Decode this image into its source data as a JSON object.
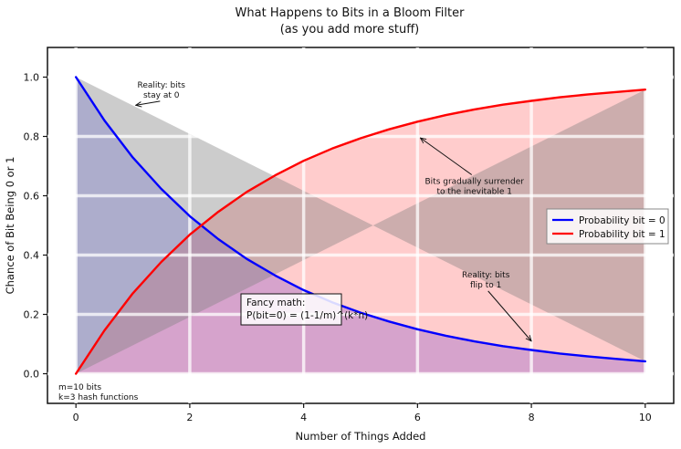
{
  "chart_data": {
    "type": "line",
    "title": "What Happens to Bits in a Bloom Filter",
    "subtitle": "(as you add more stuff)",
    "xlabel": "Number of Things Added",
    "ylabel": "Chance of Bit Being 0 or 1",
    "xlim": [
      -0.5,
      10.5
    ],
    "ylim": [
      -0.1,
      1.1
    ],
    "x_ticks": [
      0,
      2,
      4,
      6,
      8,
      10
    ],
    "x_tick_labels": [
      "0",
      "2",
      "4",
      "6",
      "8",
      "10"
    ],
    "y_ticks": [
      0.0,
      0.2,
      0.4,
      0.6,
      0.8,
      1.0
    ],
    "y_tick_labels": [
      "0.0",
      "0.2",
      "0.4",
      "0.6",
      "0.8",
      "1.0"
    ],
    "grid": true,
    "legend_position": "center-right",
    "x": [
      0,
      0.5,
      1,
      1.5,
      2,
      2.5,
      3,
      3.5,
      4,
      4.5,
      5,
      5.5,
      6,
      6.5,
      7,
      7.5,
      8,
      8.5,
      9,
      9.5,
      10
    ],
    "series": [
      {
        "name": "Probability bit = 0",
        "color": "#0000ff",
        "values": [
          1.0,
          0.854,
          0.729,
          0.623,
          0.531,
          0.454,
          0.387,
          0.331,
          0.282,
          0.241,
          0.206,
          0.176,
          0.15,
          0.128,
          0.109,
          0.093,
          0.08,
          0.068,
          0.058,
          0.05,
          0.042
        ]
      },
      {
        "name": "Probability bit = 1",
        "color": "#ff0000",
        "values": [
          0.0,
          0.146,
          0.271,
          0.377,
          0.469,
          0.546,
          0.613,
          0.669,
          0.718,
          0.759,
          0.794,
          0.824,
          0.85,
          0.872,
          0.891,
          0.907,
          0.92,
          0.932,
          0.942,
          0.95,
          0.958
        ]
      }
    ],
    "shaded_regions": [
      {
        "under_series": "Probability bit = 0",
        "color": "#0000ff",
        "opacity": 0.2
      },
      {
        "under_series": "Probability bit = 1",
        "color": "#ff0000",
        "opacity": 0.2
      },
      {
        "between": "diagonal",
        "points": [
          [
            0,
            1.0
          ],
          [
            10,
            0.042
          ],
          [
            10,
            0.958
          ],
          [
            0,
            0.0
          ]
        ],
        "color": "#808080",
        "opacity": 0.4
      }
    ],
    "annotations": [
      {
        "lines": [
          "Reality: bits",
          "stay at 0"
        ],
        "text_at": [
          1.5,
          0.965
        ],
        "arrow_to": [
          1.05,
          0.905
        ]
      },
      {
        "lines": [
          "Bits gradually surrender",
          "to the inevitable 1"
        ],
        "text_at": [
          7.0,
          0.64
        ],
        "arrow_to": [
          6.05,
          0.795
        ]
      },
      {
        "lines": [
          "Reality: bits",
          "flip to 1"
        ],
        "text_at": [
          7.2,
          0.325
        ],
        "arrow_to": [
          8.0,
          0.11
        ]
      }
    ],
    "fancy_box": {
      "lines": [
        "Fancy math:",
        "P(bit=0) = (1-1/m)^(k*n)"
      ],
      "at": [
        3.0,
        0.21
      ]
    },
    "params_note": [
      "m=10 bits",
      "k=3 hash functions"
    ]
  }
}
